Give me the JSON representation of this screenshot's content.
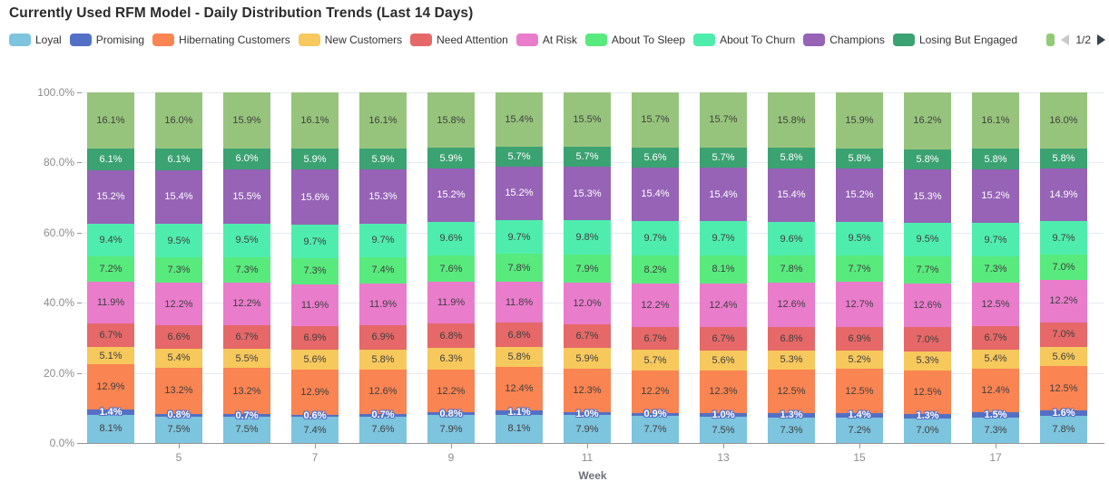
{
  "title": "Currently Used RFM Model - Daily Distribution Trends (Last 14 Days)",
  "legend": {
    "pager": {
      "text": "1/2",
      "prev_enabled": false,
      "next_enabled": true
    },
    "overflow_swatch_color": "#91cc75"
  },
  "chart_data": {
    "type": "bar",
    "stacked": true,
    "percent_stacked": true,
    "num_bars": 15,
    "title": "Currently Used RFM Model - Daily Distribution Trends (Last 14 Days)",
    "xlabel": "Week",
    "ylabel": "",
    "ylim": [
      0,
      100
    ],
    "grid": true,
    "legend_position": "top",
    "x_tick_labels": [
      "5",
      "7",
      "9",
      "11",
      "13",
      "15",
      "17"
    ],
    "x_tick_bar_indices": [
      1,
      3,
      5,
      7,
      9,
      11,
      13
    ],
    "y_tick_labels": [
      "0.0%",
      "20.0%",
      "40.0%",
      "60.0%",
      "80.0%",
      "100.0%"
    ],
    "series": [
      {
        "name": "Loyal",
        "color": "#7dc4de",
        "label_style": "dark",
        "values": [
          8.1,
          7.5,
          7.5,
          7.4,
          7.6,
          7.9,
          8.1,
          7.9,
          7.7,
          7.5,
          7.3,
          7.2,
          7.0,
          7.3,
          7.8
        ]
      },
      {
        "name": "Promising",
        "color": "#5470c6",
        "label_style": "outlined",
        "values": [
          1.4,
          0.8,
          0.7,
          0.6,
          0.7,
          0.8,
          1.1,
          1.0,
          0.9,
          1.0,
          1.3,
          1.4,
          1.3,
          1.5,
          1.6
        ]
      },
      {
        "name": "Hibernating Customers",
        "color": "#fa8452",
        "label_style": "dark",
        "values": [
          12.9,
          13.2,
          13.2,
          12.9,
          12.6,
          12.2,
          12.4,
          12.3,
          12.2,
          12.3,
          12.5,
          12.5,
          12.5,
          12.4,
          12.5
        ]
      },
      {
        "name": "New Customers",
        "color": "#f7c85c",
        "label_style": "dark",
        "values": [
          5.1,
          5.4,
          5.5,
          5.6,
          5.8,
          6.3,
          5.8,
          5.9,
          5.7,
          5.6,
          5.3,
          5.2,
          5.3,
          5.4,
          5.6
        ]
      },
      {
        "name": "Need Attention",
        "color": "#e66868",
        "label_style": "dark",
        "values": [
          6.7,
          6.6,
          6.7,
          6.9,
          6.9,
          6.8,
          6.8,
          6.7,
          6.7,
          6.7,
          6.8,
          6.9,
          7.0,
          6.7,
          7.0
        ]
      },
      {
        "name": "At Risk",
        "color": "#ea7ccc",
        "label_style": "dark",
        "values": [
          11.9,
          12.2,
          12.2,
          11.9,
          11.9,
          11.9,
          11.8,
          12.0,
          12.2,
          12.4,
          12.6,
          12.7,
          12.6,
          12.5,
          12.2
        ]
      },
      {
        "name": "About To Sleep",
        "color": "#58ea7d",
        "label_style": "dark",
        "values": [
          7.2,
          7.3,
          7.3,
          7.3,
          7.4,
          7.6,
          7.8,
          7.9,
          8.2,
          8.1,
          7.8,
          7.7,
          7.7,
          7.3,
          7.0
        ]
      },
      {
        "name": "About To Churn",
        "color": "#4fedad",
        "label_style": "dark",
        "values": [
          9.4,
          9.5,
          9.5,
          9.7,
          9.7,
          9.6,
          9.7,
          9.8,
          9.7,
          9.7,
          9.6,
          9.5,
          9.5,
          9.7,
          9.7
        ]
      },
      {
        "name": "Champions",
        "color": "#9663b6",
        "label_style": "white",
        "values": [
          15.2,
          15.4,
          15.5,
          15.6,
          15.3,
          15.2,
          15.2,
          15.3,
          15.4,
          15.4,
          15.4,
          15.2,
          15.3,
          15.2,
          14.9
        ]
      },
      {
        "name": "Losing But Engaged",
        "color": "#3ba272",
        "label_style": "white",
        "values": [
          6.1,
          6.1,
          6.0,
          5.9,
          5.9,
          5.9,
          5.7,
          5.7,
          5.6,
          5.7,
          5.8,
          5.8,
          5.8,
          5.8,
          5.8
        ]
      },
      {
        "name": "",
        "color": "#97c47c",
        "label_style": "dark",
        "values": [
          16.1,
          16.0,
          15.9,
          16.1,
          16.1,
          15.8,
          15.4,
          15.5,
          15.7,
          15.7,
          15.8,
          15.9,
          16.2,
          16.1,
          16.0
        ]
      }
    ],
    "legend_visible_series_count": 10
  }
}
